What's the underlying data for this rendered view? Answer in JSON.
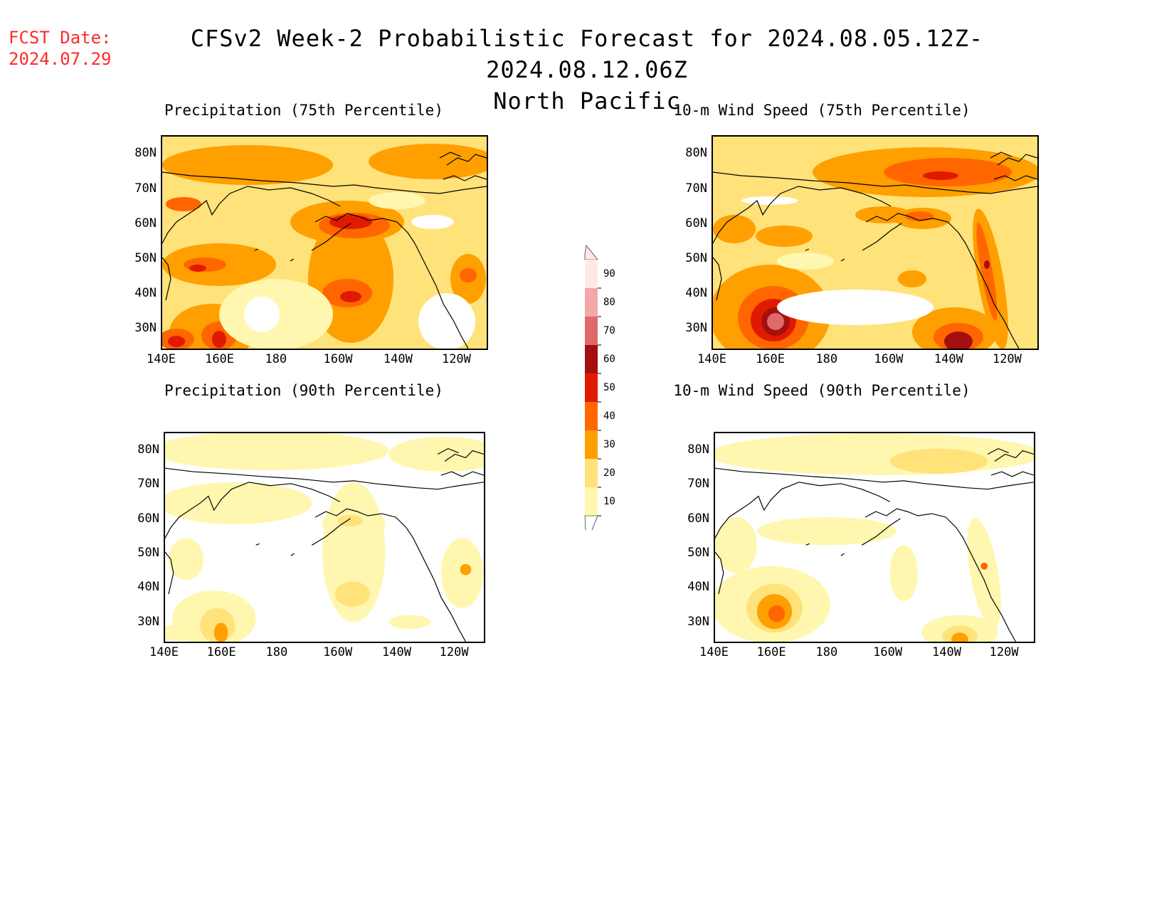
{
  "fcst_date_label": "FCST Date:",
  "fcst_date": "2024.07.29",
  "title": "CFSv2 Week-2 Probabilistic Forecast for 2024.08.05.12Z-2024.08.12.06Z",
  "region": "North Pacific",
  "panels": [
    {
      "title": "Precipitation (75th Percentile)"
    },
    {
      "title": "10-m Wind Speed (75th Percentile)"
    },
    {
      "title": "Precipitation (90th Percentile)"
    },
    {
      "title": "10-m Wind Speed (90th Percentile)"
    }
  ],
  "x_ticks": [
    "140E",
    "160E",
    "180",
    "160W",
    "140W",
    "120W"
  ],
  "y_ticks": [
    "80N",
    "70N",
    "60N",
    "50N",
    "40N",
    "30N"
  ],
  "colorbar": {
    "labels": [
      "90",
      "80",
      "70",
      "60",
      "50",
      "40",
      "30",
      "20",
      "10"
    ],
    "colors": [
      "#ffe8e8",
      "#f4a7a9",
      "#e06a6a",
      "#a50f0f",
      "#e01a00",
      "#ff6600",
      "#ff9f00",
      "#ffe27a",
      "#fff7b0"
    ]
  }
}
